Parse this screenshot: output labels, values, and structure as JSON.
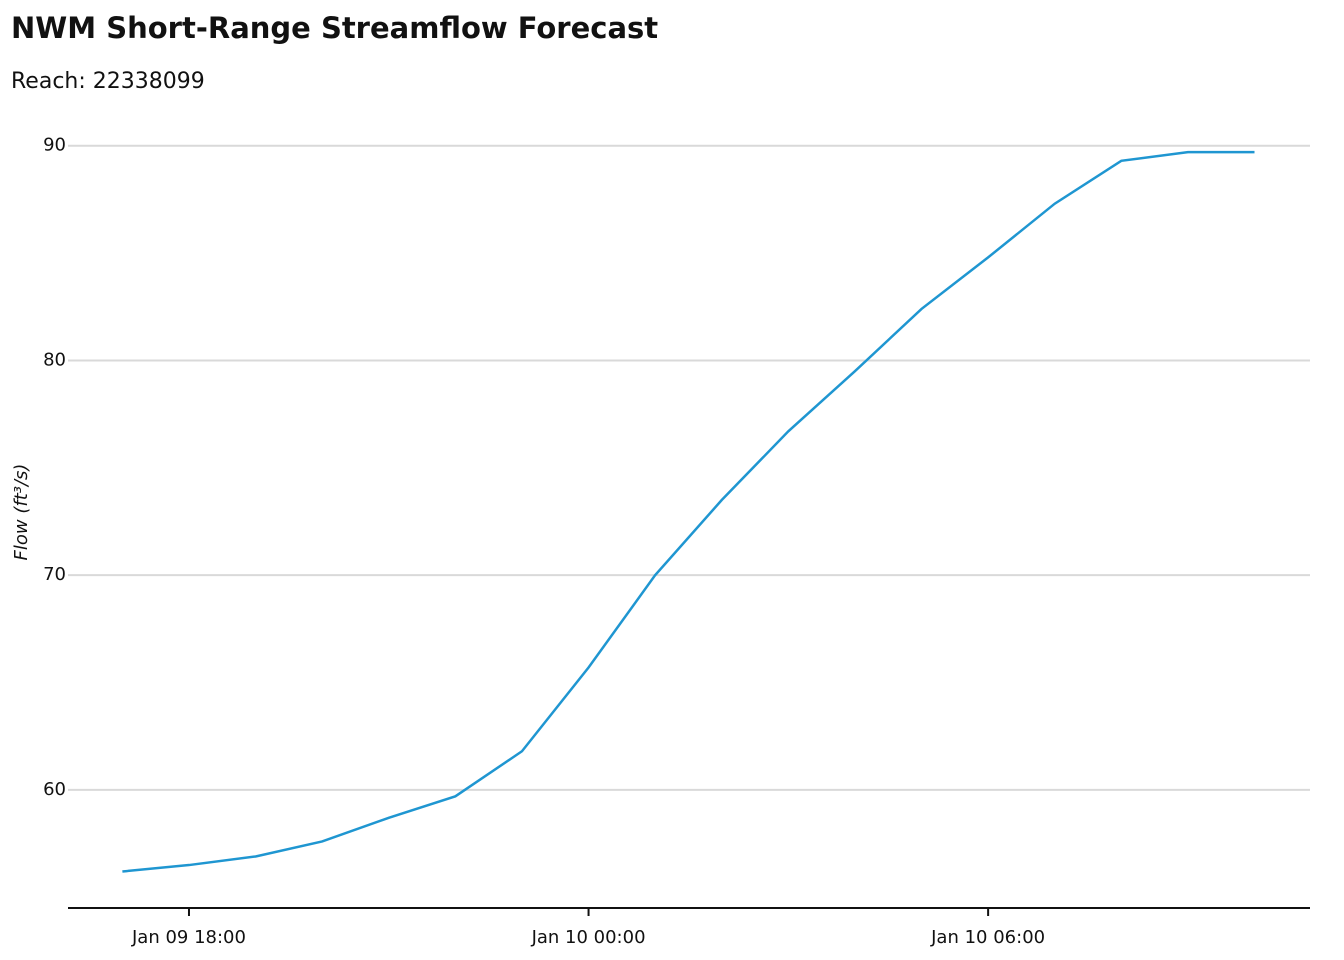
{
  "chart_data": {
    "type": "line",
    "title": "NWM Short-Range Streamflow Forecast",
    "subtitle": "Reach: 22338099",
    "y_label": "Flow (ft³/s)",
    "x": [
      "Jan 09 17:00",
      "Jan 09 18:00",
      "Jan 09 19:00",
      "Jan 09 20:00",
      "Jan 09 21:00",
      "Jan 09 22:00",
      "Jan 09 23:00",
      "Jan 10 00:00",
      "Jan 10 01:00",
      "Jan 10 02:00",
      "Jan 10 03:00",
      "Jan 10 04:00",
      "Jan 10 05:00",
      "Jan 10 06:00",
      "Jan 10 07:00",
      "Jan 10 08:00",
      "Jan 10 09:00",
      "Jan 10 10:00"
    ],
    "series": [
      {
        "color": "#1f96d1",
        "values": [
          56.2,
          56.5,
          56.9,
          57.6,
          58.7,
          59.7,
          61.8,
          65.7,
          70.0,
          73.5,
          76.7,
          79.5,
          82.4,
          84.8,
          87.3,
          89.3,
          89.7,
          89.7
        ]
      }
    ],
    "xlim": [
      "Jan 09 16:11",
      "Jan 10 10:50"
    ],
    "xticks": [
      "Jan 09 18:00",
      "Jan 10 00:00",
      "Jan 10 06:00"
    ],
    "ylim": [
      54.5,
      90.5
    ],
    "yticks": [
      60,
      70,
      80,
      90
    ],
    "grid": true
  }
}
